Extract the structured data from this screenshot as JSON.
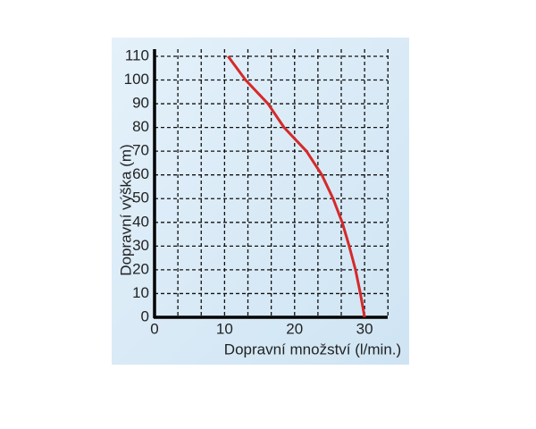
{
  "chart_data": {
    "type": "line",
    "x_label": "Dopravní množství (l/min.)",
    "y_label": "Dopravní výška (m)",
    "x": [
      30,
      29.4,
      28.7,
      27.8,
      26.8,
      25.5,
      23.9,
      21.7,
      18.5,
      16.2,
      13,
      10.5
    ],
    "series": [
      {
        "color": "#d42a2a",
        "values": [
          0,
          10,
          20,
          30,
          40,
          50,
          60,
          70,
          80,
          90,
          100,
          110
        ]
      }
    ],
    "xlim": [
      0,
      33.3
    ],
    "xticks": [
      0,
      10,
      20,
      30
    ],
    "ylim": [
      0,
      113
    ],
    "yticks": [
      0,
      10,
      20,
      30,
      40,
      50,
      60,
      70,
      80,
      90,
      100,
      110
    ],
    "grid": true,
    "x_minor_per_tick": 3
  }
}
